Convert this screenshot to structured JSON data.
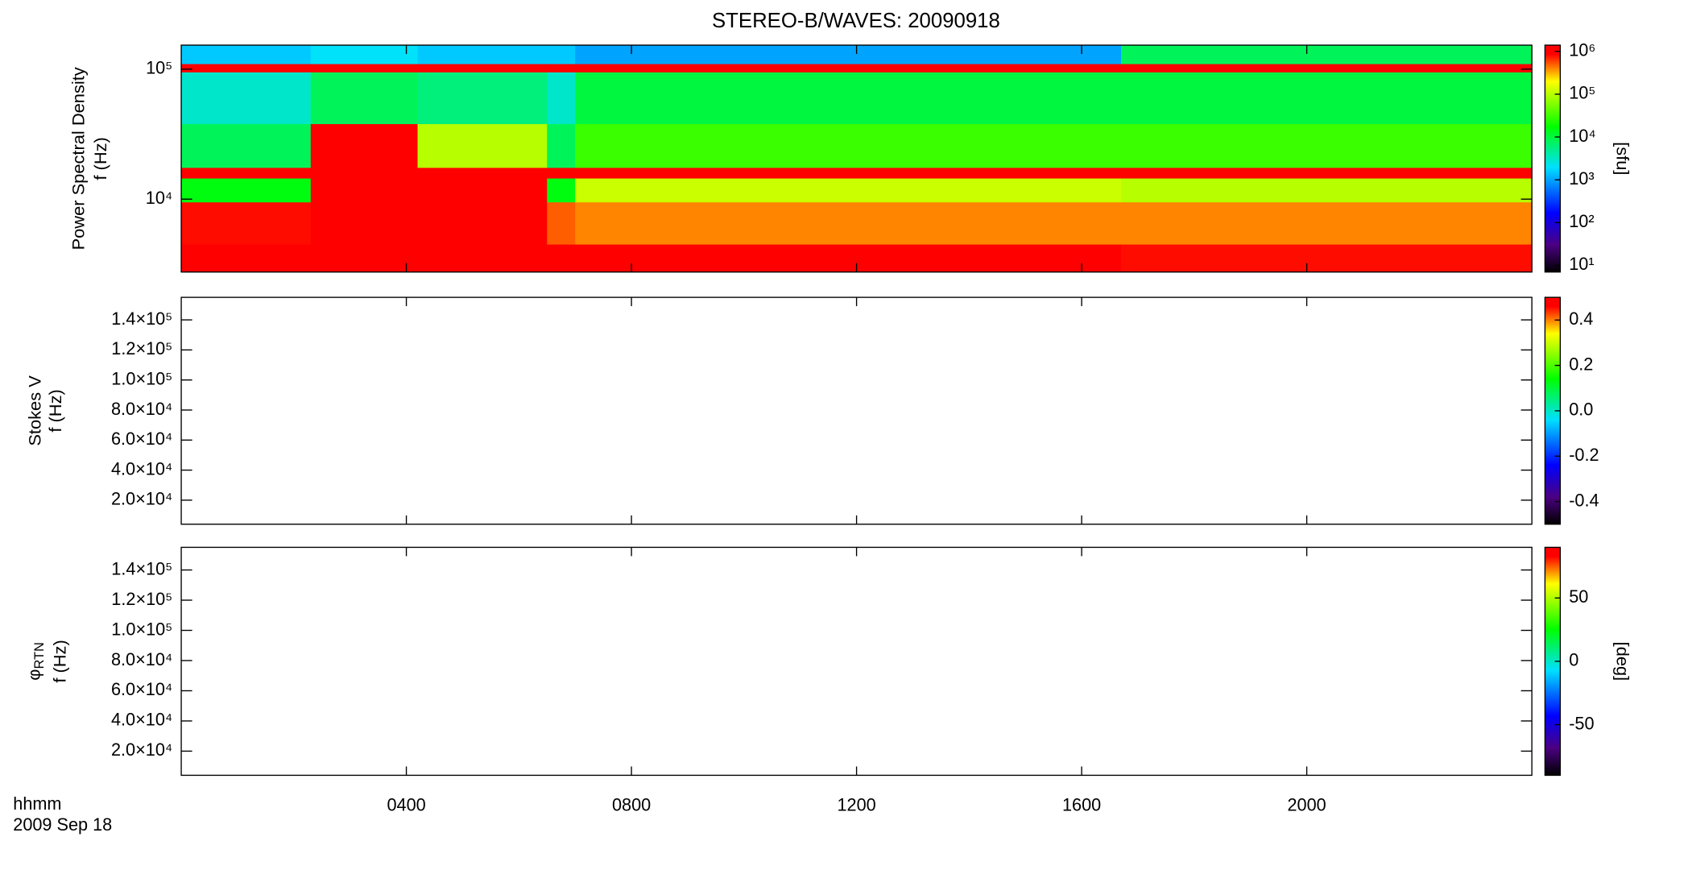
{
  "title": "STEREO-B/WAVES: 20090918",
  "time_label": "hhmm",
  "date_label": "2009 Sep 18",
  "chart_data": [
    {
      "type": "spectrogram",
      "ylabel": [
        "Power Spectral Density",
        "f (Hz)"
      ],
      "log_y": true,
      "log_z": true,
      "xlim": [
        0,
        24
      ],
      "xticks": [
        4,
        8,
        12,
        16,
        20
      ],
      "ylim": [
        2750,
        153000
      ],
      "yticks": [
        {
          "value": 10000,
          "label": "10⁴"
        },
        {
          "value": 100000,
          "label": "10⁵"
        }
      ],
      "x_edges": [
        0,
        2.3,
        4.2,
        6.5,
        7.0,
        16.7,
        24
      ],
      "y_edges": [
        2750,
        4500,
        9500,
        14500,
        17500,
        38000,
        95000,
        110000,
        153000
      ],
      "values": [
        [
          1000000,
          800000,
          15000,
          1000000,
          8000,
          3000,
          1000000,
          1500
        ],
        [
          1000000,
          1000000,
          1000000,
          1000000,
          1000000,
          8000,
          1000000,
          2000
        ],
        [
          1000000,
          1000000,
          1000000,
          1000000,
          100000,
          6000,
          1000000,
          1500
        ],
        [
          1000000,
          500000,
          15000,
          1000000,
          8000,
          3000,
          1000000,
          1500
        ],
        [
          1000000,
          400000,
          120000,
          1000000,
          30000,
          10000,
          1000000,
          1000
        ],
        [
          800000,
          400000,
          100000,
          1000000,
          30000,
          10000,
          1000000,
          8000
        ]
      ],
      "zlim": [
        7,
        1400000
      ],
      "zticks": [
        {
          "value": 10,
          "label": "10¹"
        },
        {
          "value": 100,
          "label": "10²"
        },
        {
          "value": 1000,
          "label": "10³"
        },
        {
          "value": 10000,
          "label": "10⁴"
        },
        {
          "value": 100000,
          "label": "10⁵"
        },
        {
          "value": 1000000,
          "label": "10⁶"
        }
      ],
      "zlabel": "[sfu]"
    },
    {
      "type": "spectrogram",
      "ylabel": [
        "Stokes V",
        "f (Hz)"
      ],
      "log_y": false,
      "log_z": false,
      "xlim": [
        0,
        24
      ],
      "xticks": [
        4,
        8,
        12,
        16,
        20
      ],
      "ylim": [
        4000,
        155000
      ],
      "yticks": [
        {
          "value": 20000,
          "label": "2.0×10⁴"
        },
        {
          "value": 40000,
          "label": "4.0×10⁴"
        },
        {
          "value": 60000,
          "label": "6.0×10⁴"
        },
        {
          "value": 80000,
          "label": "8.0×10⁴"
        },
        {
          "value": 100000,
          "label": "1.0×10⁵"
        },
        {
          "value": 120000,
          "label": "1.2×10⁵"
        },
        {
          "value": 140000,
          "label": "1.4×10⁵"
        }
      ],
      "zlim": [
        -0.5,
        0.5
      ],
      "zticks": [
        -0.4,
        -0.2,
        {
          "value": 0,
          "label": "0.0"
        },
        0.2,
        0.4
      ]
    },
    {
      "type": "spectrogram",
      "ylabel_symbol": "φ",
      "ylabel_subscript": "RTN",
      "ylabel": [
        "f (Hz)"
      ],
      "log_y": false,
      "log_z": false,
      "xlim": [
        0,
        24
      ],
      "xticks": [
        {
          "value": 4,
          "label": "0400"
        },
        {
          "value": 8,
          "label": "0800"
        },
        {
          "value": 12,
          "label": "1200"
        },
        {
          "value": 16,
          "label": "1600"
        },
        {
          "value": 20,
          "label": "2000"
        }
      ],
      "ylim": [
        4000,
        155000
      ],
      "yticks": [
        {
          "value": 20000,
          "label": "2.0×10⁴"
        },
        {
          "value": 40000,
          "label": "4.0×10⁴"
        },
        {
          "value": 60000,
          "label": "6.0×10⁴"
        },
        {
          "value": 80000,
          "label": "8.0×10⁴"
        },
        {
          "value": 100000,
          "label": "1.0×10⁵"
        },
        {
          "value": 120000,
          "label": "1.2×10⁵"
        },
        {
          "value": 140000,
          "label": "1.4×10⁵"
        }
      ],
      "zlim": [
        -90,
        90
      ],
      "zticks": [
        -50,
        0,
        50
      ],
      "zlabel": "[deg]"
    }
  ]
}
